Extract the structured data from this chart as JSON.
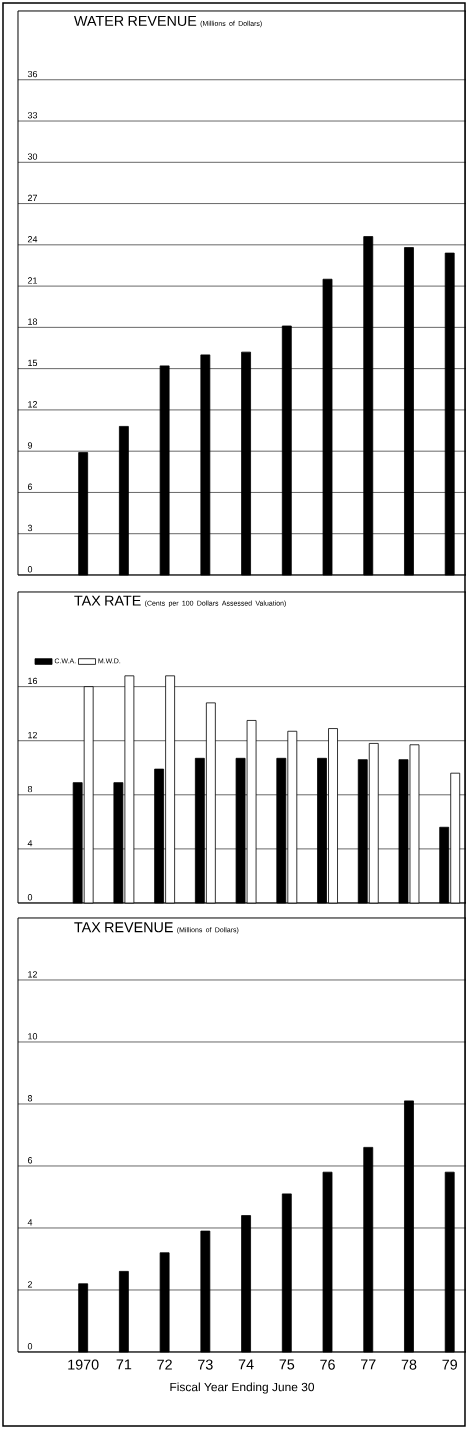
{
  "chart_data": [
    {
      "type": "bar",
      "title": "WATER REVENUE",
      "subtitle": "(Millions of Dollars)",
      "categories": [
        "1970",
        "71",
        "72",
        "73",
        "74",
        "75",
        "76",
        "77",
        "78",
        "79"
      ],
      "values": [
        8.9,
        10.8,
        15.2,
        16.0,
        16.2,
        18.1,
        21.5,
        24.6,
        23.8,
        23.4
      ],
      "color": "#000000",
      "ylim": [
        0,
        41
      ],
      "yticks": [
        0,
        3,
        6,
        9,
        12,
        15,
        18,
        21,
        24,
        27,
        30,
        33,
        36
      ],
      "grid": "y",
      "tick_labels": "y"
    },
    {
      "type": "bar",
      "title": "TAX RATE",
      "subtitle": "(Cents per 100 Dollars Assessed Valuation)",
      "categories": [
        "1970",
        "71",
        "72",
        "73",
        "74",
        "75",
        "76",
        "77",
        "78",
        "79"
      ],
      "series": [
        {
          "name": "C.W.A.",
          "color": "#000000",
          "values": [
            8.9,
            8.9,
            9.9,
            10.7,
            10.7,
            10.7,
            10.7,
            10.6,
            10.6,
            5.6
          ]
        },
        {
          "name": "M.W.D.",
          "color": "#ffffff",
          "values": [
            16.0,
            16.8,
            16.8,
            14.8,
            13.5,
            12.7,
            12.9,
            11.8,
            11.7,
            9.6
          ]
        }
      ],
      "ylim": [
        0,
        23
      ],
      "yticks": [
        0,
        4,
        8,
        12,
        16
      ],
      "grid": "y",
      "legend": "top left",
      "tick_labels": "y"
    },
    {
      "type": "bar",
      "title": "TAX REVENUE",
      "subtitle": "(Millions of Dollars)",
      "categories": [
        "1970",
        "71",
        "72",
        "73",
        "74",
        "75",
        "76",
        "77",
        "78",
        "79"
      ],
      "values": [
        2.2,
        2.6,
        3.2,
        3.9,
        4.4,
        5.1,
        5.8,
        6.6,
        8.1,
        5.8
      ],
      "color": "#000000",
      "ylim": [
        0,
        14
      ],
      "yticks": [
        0,
        2,
        4,
        6,
        8,
        10,
        12
      ],
      "grid": "y",
      "xlabel": "Fiscal Year Ending June 30"
    }
  ]
}
